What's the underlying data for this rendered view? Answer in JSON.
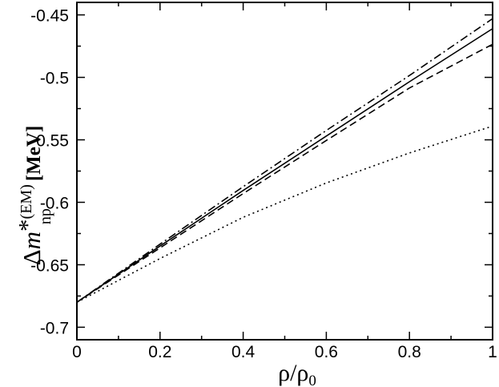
{
  "chart_data": {
    "type": "line",
    "title": "",
    "xlabel": "ρ/ρ",
    "xlabel_sub": "0",
    "ylabel": {
      "delta": "Δ",
      "m": "m",
      "star": "*",
      "superscript": "(EM)",
      "subscript": "np",
      "unit": "[MeV]"
    },
    "xlim": [
      0,
      1
    ],
    "ylim": [
      -0.71,
      -0.44
    ],
    "x_ticks": [
      {
        "value": 0,
        "label": "0"
      },
      {
        "value": 0.2,
        "label": "0.2"
      },
      {
        "value": 0.4,
        "label": "0.4"
      },
      {
        "value": 0.6,
        "label": "0.6"
      },
      {
        "value": 0.8,
        "label": "0.8"
      },
      {
        "value": 1,
        "label": "1"
      }
    ],
    "y_ticks": [
      {
        "value": -0.45,
        "label": "-0.45"
      },
      {
        "value": -0.5,
        "label": "-0.5"
      },
      {
        "value": -0.55,
        "label": "-0.55"
      },
      {
        "value": -0.6,
        "label": "-0.6"
      },
      {
        "value": -0.65,
        "label": "-0.65"
      },
      {
        "value": -0.7,
        "label": "-0.7"
      }
    ],
    "grid": false,
    "legend": "none",
    "series": [
      {
        "style": "solid",
        "x": [
          0,
          0.2,
          0.4,
          0.6,
          0.8,
          1.0
        ],
        "values": [
          -0.68,
          -0.635,
          -0.5905,
          -0.547,
          -0.5035,
          -0.461
        ]
      },
      {
        "style": "dashed",
        "x": [
          0,
          0.2,
          0.4,
          0.6,
          0.8,
          1.0
        ],
        "values": [
          -0.68,
          -0.6365,
          -0.593,
          -0.5505,
          -0.5085,
          -0.4735
        ]
      },
      {
        "style": "dashdot",
        "x": [
          0,
          0.2,
          0.4,
          0.6,
          0.8,
          1.0
        ],
        "values": [
          -0.68,
          -0.6335,
          -0.5875,
          -0.5425,
          -0.4985,
          -0.453
        ]
      },
      {
        "style": "dotted",
        "x": [
          0,
          0.2,
          0.4,
          0.6,
          0.8,
          1.0
        ],
        "values": [
          -0.68,
          -0.645,
          -0.612,
          -0.5845,
          -0.5605,
          -0.539
        ]
      }
    ]
  }
}
